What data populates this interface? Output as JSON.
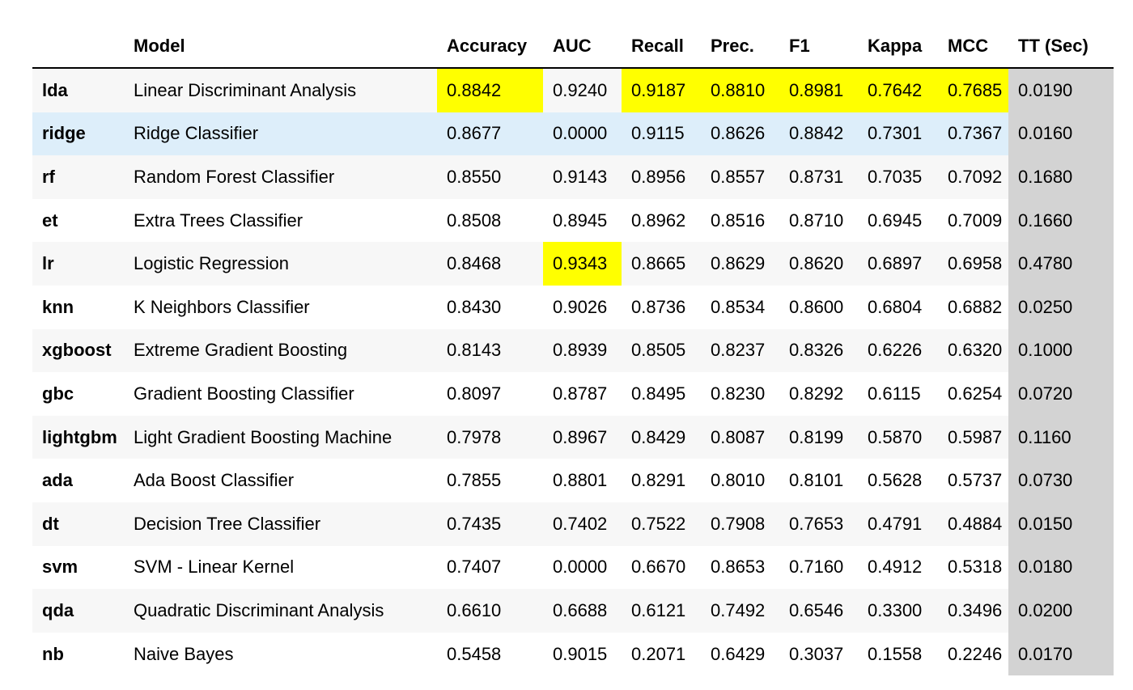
{
  "columns": {
    "index": "",
    "model": "Model",
    "accuracy": "Accuracy",
    "auc": "AUC",
    "recall": "Recall",
    "prec": "Prec.",
    "f1": "F1",
    "kappa": "Kappa",
    "mcc": "MCC",
    "tt": "TT (Sec)"
  },
  "colors": {
    "best_highlight": "#ffff00",
    "hover_row": "#ddeefa",
    "tt_column": "#d3d3d3",
    "stripe": "#f7f7f7"
  },
  "rows": [
    {
      "id": "lda",
      "model": "Linear Discriminant Analysis",
      "accuracy": "0.8842",
      "auc": "0.9240",
      "recall": "0.9187",
      "prec": "0.8810",
      "f1": "0.8981",
      "kappa": "0.7642",
      "mcc": "0.7685",
      "tt": "0.0190",
      "best": [
        "accuracy",
        "recall",
        "prec",
        "f1",
        "kappa",
        "mcc"
      ]
    },
    {
      "id": "ridge",
      "model": "Ridge Classifier",
      "accuracy": "0.8677",
      "auc": "0.0000",
      "recall": "0.9115",
      "prec": "0.8626",
      "f1": "0.8842",
      "kappa": "0.7301",
      "mcc": "0.7367",
      "tt": "0.0160",
      "best": [],
      "hovered": true
    },
    {
      "id": "rf",
      "model": "Random Forest Classifier",
      "accuracy": "0.8550",
      "auc": "0.9143",
      "recall": "0.8956",
      "prec": "0.8557",
      "f1": "0.8731",
      "kappa": "0.7035",
      "mcc": "0.7092",
      "tt": "0.1680",
      "best": []
    },
    {
      "id": "et",
      "model": "Extra Trees Classifier",
      "accuracy": "0.8508",
      "auc": "0.8945",
      "recall": "0.8962",
      "prec": "0.8516",
      "f1": "0.8710",
      "kappa": "0.6945",
      "mcc": "0.7009",
      "tt": "0.1660",
      "best": []
    },
    {
      "id": "lr",
      "model": "Logistic Regression",
      "accuracy": "0.8468",
      "auc": "0.9343",
      "recall": "0.8665",
      "prec": "0.8629",
      "f1": "0.8620",
      "kappa": "0.6897",
      "mcc": "0.6958",
      "tt": "0.4780",
      "best": [
        "auc"
      ]
    },
    {
      "id": "knn",
      "model": "K Neighbors Classifier",
      "accuracy": "0.8430",
      "auc": "0.9026",
      "recall": "0.8736",
      "prec": "0.8534",
      "f1": "0.8600",
      "kappa": "0.6804",
      "mcc": "0.6882",
      "tt": "0.0250",
      "best": []
    },
    {
      "id": "xgboost",
      "model": "Extreme Gradient Boosting",
      "accuracy": "0.8143",
      "auc": "0.8939",
      "recall": "0.8505",
      "prec": "0.8237",
      "f1": "0.8326",
      "kappa": "0.6226",
      "mcc": "0.6320",
      "tt": "0.1000",
      "best": []
    },
    {
      "id": "gbc",
      "model": "Gradient Boosting Classifier",
      "accuracy": "0.8097",
      "auc": "0.8787",
      "recall": "0.8495",
      "prec": "0.8230",
      "f1": "0.8292",
      "kappa": "0.6115",
      "mcc": "0.6254",
      "tt": "0.0720",
      "best": []
    },
    {
      "id": "lightgbm",
      "model": "Light Gradient Boosting Machine",
      "accuracy": "0.7978",
      "auc": "0.8967",
      "recall": "0.8429",
      "prec": "0.8087",
      "f1": "0.8199",
      "kappa": "0.5870",
      "mcc": "0.5987",
      "tt": "0.1160",
      "best": []
    },
    {
      "id": "ada",
      "model": "Ada Boost Classifier",
      "accuracy": "0.7855",
      "auc": "0.8801",
      "recall": "0.8291",
      "prec": "0.8010",
      "f1": "0.8101",
      "kappa": "0.5628",
      "mcc": "0.5737",
      "tt": "0.0730",
      "best": []
    },
    {
      "id": "dt",
      "model": "Decision Tree Classifier",
      "accuracy": "0.7435",
      "auc": "0.7402",
      "recall": "0.7522",
      "prec": "0.7908",
      "f1": "0.7653",
      "kappa": "0.4791",
      "mcc": "0.4884",
      "tt": "0.0150",
      "best": []
    },
    {
      "id": "svm",
      "model": "SVM - Linear Kernel",
      "accuracy": "0.7407",
      "auc": "0.0000",
      "recall": "0.6670",
      "prec": "0.8653",
      "f1": "0.7160",
      "kappa": "0.4912",
      "mcc": "0.5318",
      "tt": "0.0180",
      "best": []
    },
    {
      "id": "qda",
      "model": "Quadratic Discriminant Analysis",
      "accuracy": "0.6610",
      "auc": "0.6688",
      "recall": "0.6121",
      "prec": "0.7492",
      "f1": "0.6546",
      "kappa": "0.3300",
      "mcc": "0.3496",
      "tt": "0.0200",
      "best": []
    },
    {
      "id": "nb",
      "model": "Naive Bayes",
      "accuracy": "0.5458",
      "auc": "0.9015",
      "recall": "0.2071",
      "prec": "0.6429",
      "f1": "0.3037",
      "kappa": "0.1558",
      "mcc": "0.2246",
      "tt": "0.0170",
      "best": []
    }
  ]
}
